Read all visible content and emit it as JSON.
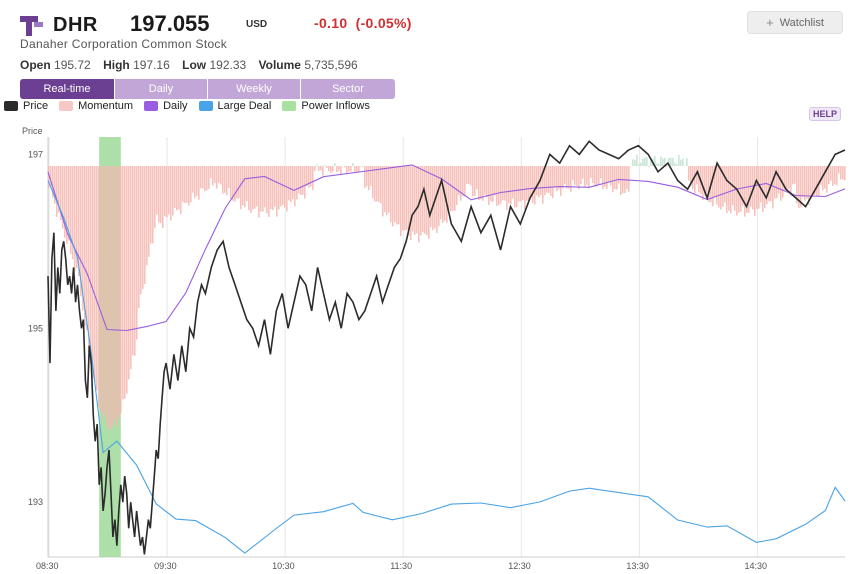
{
  "header": {
    "ticker": "DHR",
    "price": "197.055",
    "currency": "USD",
    "change": "-0.10",
    "change_pct": "(-0.05%)",
    "company": "Danaher Corporation Common Stock",
    "watchlist_label": "Watchlist",
    "stats": {
      "open_label": "Open",
      "open": "195.72",
      "high_label": "High",
      "high": "197.16",
      "low_label": "Low",
      "low": "192.33",
      "volume_label": "Volume",
      "volume": "5,735,596"
    }
  },
  "tabs": [
    {
      "label": "Real-time",
      "active": true
    },
    {
      "label": "Daily",
      "active": false
    },
    {
      "label": "Weekly",
      "active": false
    },
    {
      "label": "Sector",
      "active": false
    }
  ],
  "legend": [
    {
      "label": "Price",
      "color": "#2b2b2b"
    },
    {
      "label": "Momentum",
      "color": "#f6c9c4"
    },
    {
      "label": "Daily",
      "color": "#9a5ce0"
    },
    {
      "label": "Large Deal",
      "color": "#4aa3e6"
    },
    {
      "label": "Power Inflows",
      "color": "#a8e0a0"
    }
  ],
  "help_label": "HELP",
  "colors": {
    "brand": "#6b3f92",
    "negative": "#d03030",
    "momentum_negative": "#f6b7b0",
    "momentum_positive": "#bfe3cf",
    "power_inflow": "#9fd99a"
  },
  "chart_data": {
    "type": "line",
    "y_axis_label": "Price",
    "y_ticks": [
      197,
      195,
      193
    ],
    "ylim": [
      192.37,
      197.2
    ],
    "x_ticks": [
      "08:30",
      "09:30",
      "10:30",
      "11:30",
      "12:30",
      "13:30",
      "14:30"
    ],
    "x_range_minutes": [
      0,
      405
    ],
    "power_inflow": {
      "start": "08:56",
      "end": "09:07"
    },
    "series": [
      {
        "name": "Price",
        "minutes": [
          0,
          1,
          2,
          3,
          4,
          5,
          6,
          7,
          8,
          9,
          10,
          11,
          12,
          13,
          14,
          15,
          16,
          17,
          18,
          19,
          20,
          21,
          22,
          23,
          24,
          25,
          26,
          27,
          28,
          29,
          30,
          31,
          32,
          33,
          34,
          35,
          36,
          37,
          38,
          39,
          40,
          41,
          42,
          43,
          44,
          45,
          46,
          47,
          48,
          49,
          50,
          51,
          52,
          53,
          54,
          55,
          56,
          57,
          58,
          59,
          60,
          62,
          64,
          66,
          68,
          70,
          72,
          74,
          76,
          78,
          80,
          83,
          86,
          89,
          92,
          95,
          98,
          101,
          104,
          107,
          110,
          113,
          116,
          119,
          122,
          125,
          128,
          131,
          134,
          137,
          140,
          143,
          146,
          149,
          152,
          155,
          158,
          161,
          164,
          167,
          170,
          173,
          176,
          179,
          182,
          185,
          188,
          191,
          194,
          197,
          200,
          205,
          210,
          215,
          220,
          225,
          230,
          235,
          240,
          245,
          250,
          255,
          260,
          265,
          270,
          275,
          280,
          285,
          290,
          295,
          300,
          305,
          310,
          315,
          320,
          325,
          330,
          335,
          340,
          345,
          350,
          355,
          360,
          365,
          370,
          375,
          380,
          385,
          390,
          395,
          400,
          405
        ],
        "values": [
          195.6,
          194.6,
          195.8,
          196.1,
          195.2,
          195.7,
          195.4,
          195.9,
          196.0,
          195.8,
          195.5,
          195.6,
          195.4,
          195.7,
          195.3,
          195.5,
          195.2,
          195.0,
          195.1,
          194.4,
          194.2,
          194.8,
          194.6,
          194.0,
          193.7,
          193.9,
          193.2,
          193.4,
          192.9,
          193.1,
          193.4,
          193.6,
          193.1,
          192.6,
          192.8,
          192.5,
          192.9,
          193.2,
          193.0,
          193.3,
          193.1,
          192.7,
          193.0,
          192.8,
          192.6,
          192.9,
          192.7,
          192.5,
          192.6,
          192.4,
          192.6,
          192.8,
          192.7,
          193.0,
          193.3,
          193.6,
          193.5,
          193.9,
          194.2,
          194.5,
          194.6,
          194.3,
          194.7,
          194.4,
          194.8,
          194.5,
          195.0,
          194.9,
          195.3,
          195.5,
          195.4,
          195.7,
          195.9,
          196.0,
          195.7,
          195.5,
          195.3,
          195.1,
          195.0,
          194.8,
          195.1,
          194.7,
          195.2,
          195.4,
          195.0,
          195.3,
          195.6,
          195.5,
          195.2,
          195.7,
          195.4,
          195.1,
          195.3,
          195.0,
          195.4,
          195.3,
          195.1,
          195.2,
          195.4,
          195.6,
          195.3,
          195.5,
          195.7,
          195.8,
          196.0,
          196.3,
          196.4,
          196.6,
          196.3,
          196.5,
          196.7,
          196.2,
          196.0,
          196.4,
          196.1,
          196.3,
          195.9,
          196.4,
          196.2,
          196.5,
          196.7,
          197.0,
          196.9,
          197.1,
          197.0,
          197.15,
          197.05,
          197.0,
          196.95,
          197.05,
          197.1,
          197.0,
          196.8,
          196.9,
          196.7,
          196.6,
          196.8,
          196.5,
          196.9,
          196.7,
          196.6,
          196.4,
          196.7,
          196.5,
          196.8,
          196.6,
          196.5,
          196.4,
          196.6,
          196.8,
          197.0,
          197.05
        ]
      }
    ]
  }
}
